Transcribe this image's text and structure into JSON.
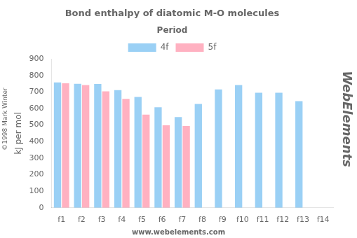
{
  "chart_data": {
    "type": "bar",
    "title": "Bond enthalpy of diatomic M-O molecules",
    "ylabel": "kJ per mol",
    "categories": [
      "f1",
      "f2",
      "f3",
      "f4",
      "f5",
      "f6",
      "f7",
      "f8",
      "f9",
      "f10",
      "f11",
      "f12",
      "f13",
      "f14"
    ],
    "series": [
      {
        "name": "4f",
        "values": [
          757,
          749,
          748,
          711,
          669,
          607,
          548,
          627,
          715,
          741,
          695,
          695,
          644,
          0
        ]
      },
      {
        "name": "5f",
        "values": [
          752,
          741,
          703,
          658,
          563,
          498,
          494,
          0,
          0,
          0,
          0,
          0,
          0,
          0
        ]
      }
    ],
    "ylim": [
      0,
      900
    ],
    "yticks": [
      0,
      100,
      200,
      300,
      400,
      500,
      600,
      700,
      800,
      900
    ],
    "grid": false,
    "legend": "top",
    "annotations": [
      "Period",
      "www.webelements.com",
      "©1998 Mark Winter",
      "WebElements"
    ]
  }
}
